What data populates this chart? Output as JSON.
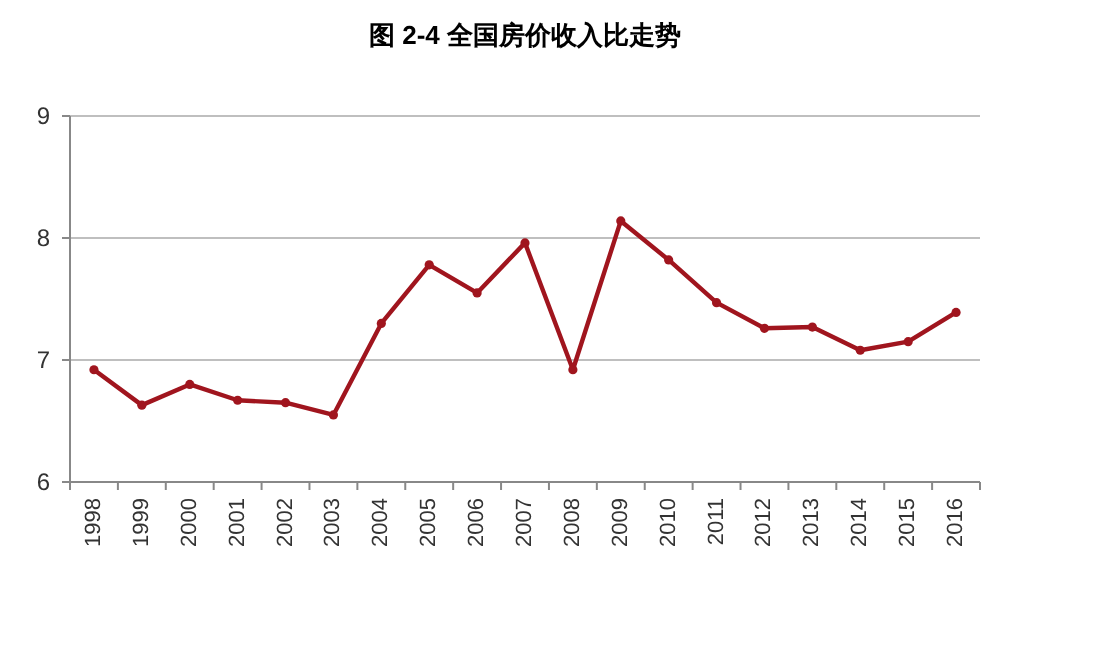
{
  "chart_data": {
    "type": "line",
    "title": "图 2-4  全国房价收入比走势",
    "categories": [
      "1998",
      "1999",
      "2000",
      "2001",
      "2002",
      "2003",
      "2004",
      "2005",
      "2006",
      "2007",
      "2008",
      "2009",
      "2010",
      "2011",
      "2012",
      "2013",
      "2014",
      "2015",
      "2016"
    ],
    "series": [
      {
        "color": "#a0151e",
        "values": [
          6.92,
          6.63,
          6.8,
          6.67,
          6.65,
          6.55,
          7.3,
          7.78,
          7.55,
          7.96,
          6.92,
          8.14,
          7.82,
          7.47,
          7.26,
          7.27,
          7.08,
          7.15,
          7.39
        ]
      }
    ],
    "ylim": [
      6,
      9
    ],
    "yticks": [
      6,
      7,
      8,
      9
    ],
    "grid": "y",
    "marker": "circle",
    "line_style": "solid"
  }
}
